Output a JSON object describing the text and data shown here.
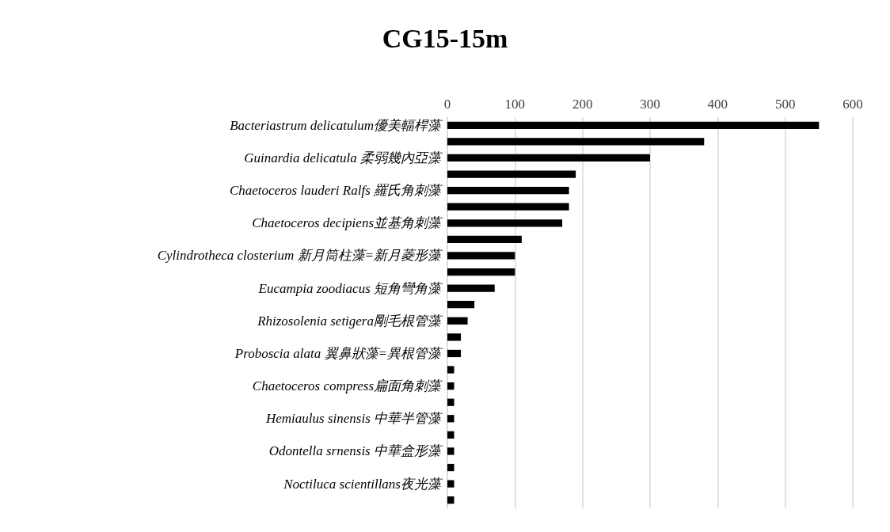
{
  "chart_data": {
    "type": "bar",
    "orientation": "horizontal",
    "title": "CG15-15m",
    "categories": [
      "Bacteriastrum delicatulum優美輻桿藻",
      null,
      "Guinardia delicatula 柔弱幾內亞藻",
      null,
      "Chaetoceros lauderi Ralfs 羅氏角刺藻",
      null,
      "Chaetoceros decipiens並基角刺藻",
      null,
      "Cylindrotheca closterium 新月筒柱藻=新月菱形藻",
      null,
      "Eucampia zoodiacus 短角彎角藻",
      null,
      "Rhizosolenia setigera剛毛根管藻",
      null,
      "Proboscia alata 翼鼻狀藻=異根管藻",
      null,
      "Chaetoceros compress扁面角刺藻",
      null,
      "Hemiaulus sinensis 中華半管藻",
      null,
      "Odontella srnensis 中華盒形藻",
      null,
      "Noctiluca scientillans夜光藻",
      null
    ],
    "values": [
      550,
      380,
      300,
      190,
      180,
      180,
      170,
      110,
      100,
      100,
      70,
      40,
      30,
      20,
      20,
      10,
      10,
      10,
      10,
      10,
      10,
      10,
      10,
      10
    ],
    "color": "#000000",
    "xlim": [
      0,
      600
    ],
    "xticks": [
      0,
      100,
      200,
      300,
      400,
      500,
      600
    ],
    "grid": "x"
  }
}
